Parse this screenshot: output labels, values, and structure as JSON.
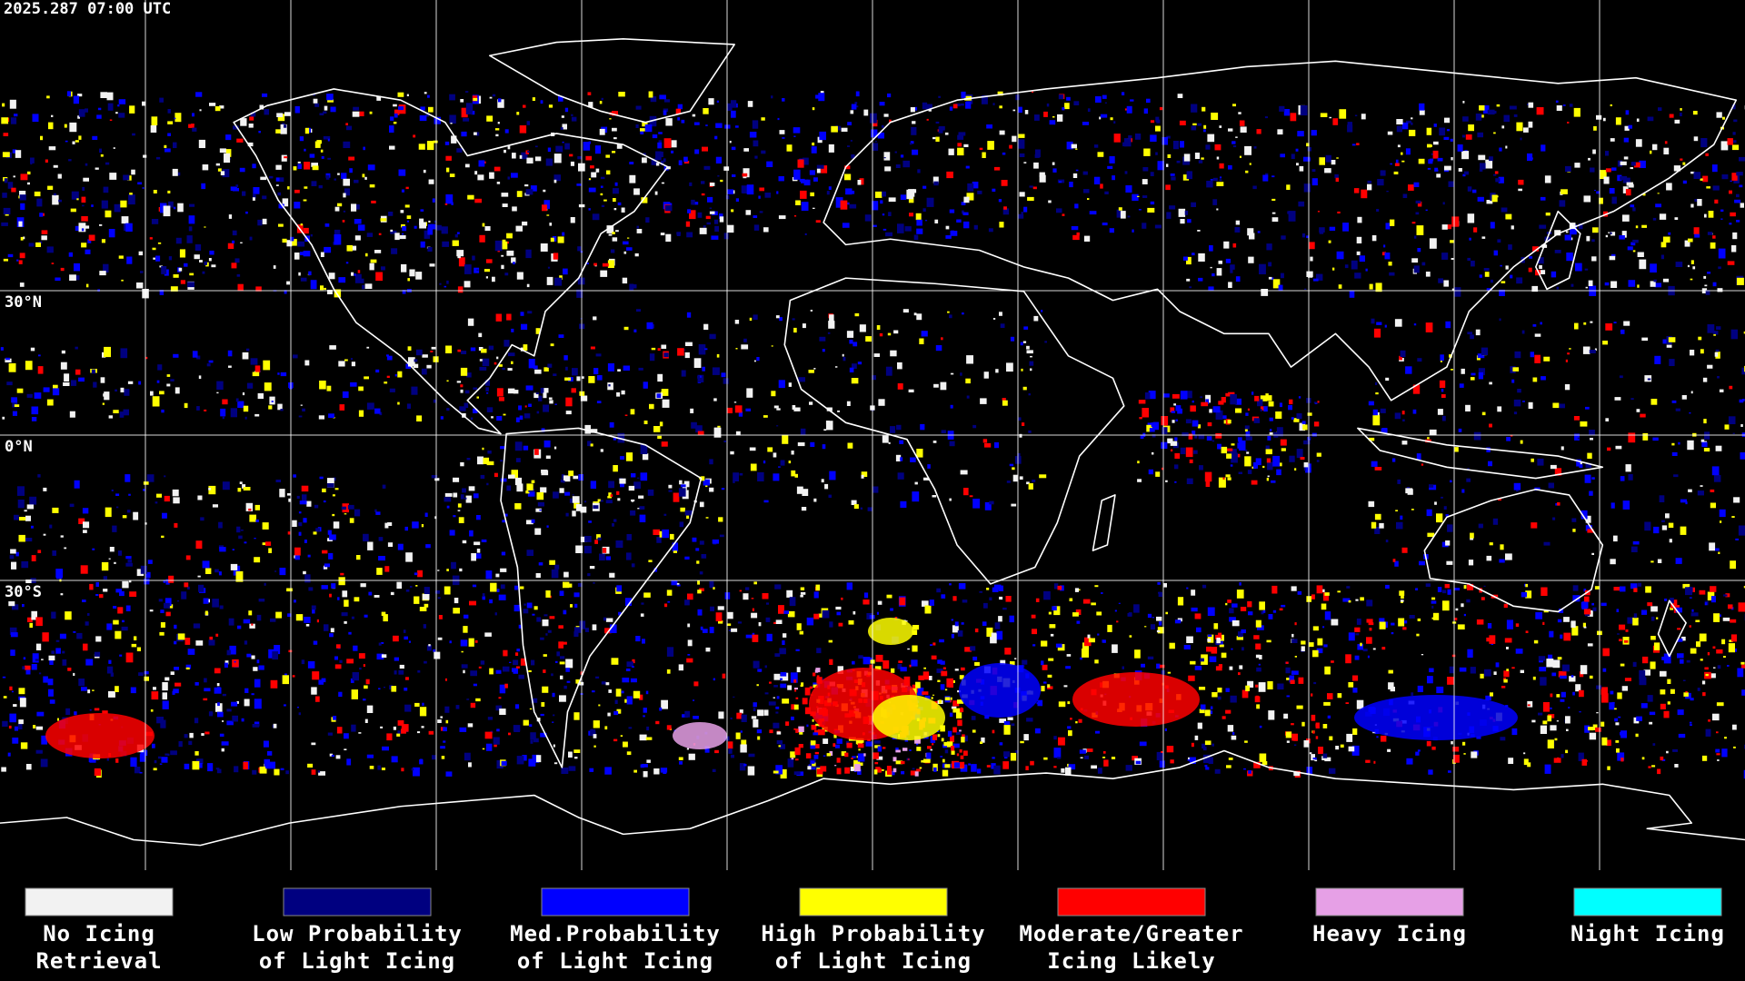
{
  "header": {
    "timestamp": "2025.287 07:00 UTC"
  },
  "grid": {
    "lat_labels": [
      "30°N",
      "0°N",
      "30°S"
    ]
  },
  "legend": {
    "items": [
      {
        "lines": [
          "No Icing",
          "Retrieval"
        ],
        "color": "#f2f2f2"
      },
      {
        "lines": [
          "Low Probability",
          "of Light Icing"
        ],
        "color": "#000080"
      },
      {
        "lines": [
          "Med.Probability",
          "of Light Icing"
        ],
        "color": "#0000ff"
      },
      {
        "lines": [
          "High Probability",
          "of Light Icing"
        ],
        "color": "#ffff00"
      },
      {
        "lines": [
          "Moderate/Greater",
          "Icing Likely"
        ],
        "color": "#ff0000"
      },
      {
        "lines": [
          "Heavy Icing"
        ],
        "color": "#e6a0e6"
      },
      {
        "lines": [
          "Night Icing"
        ],
        "color": "#00ffff"
      }
    ]
  }
}
